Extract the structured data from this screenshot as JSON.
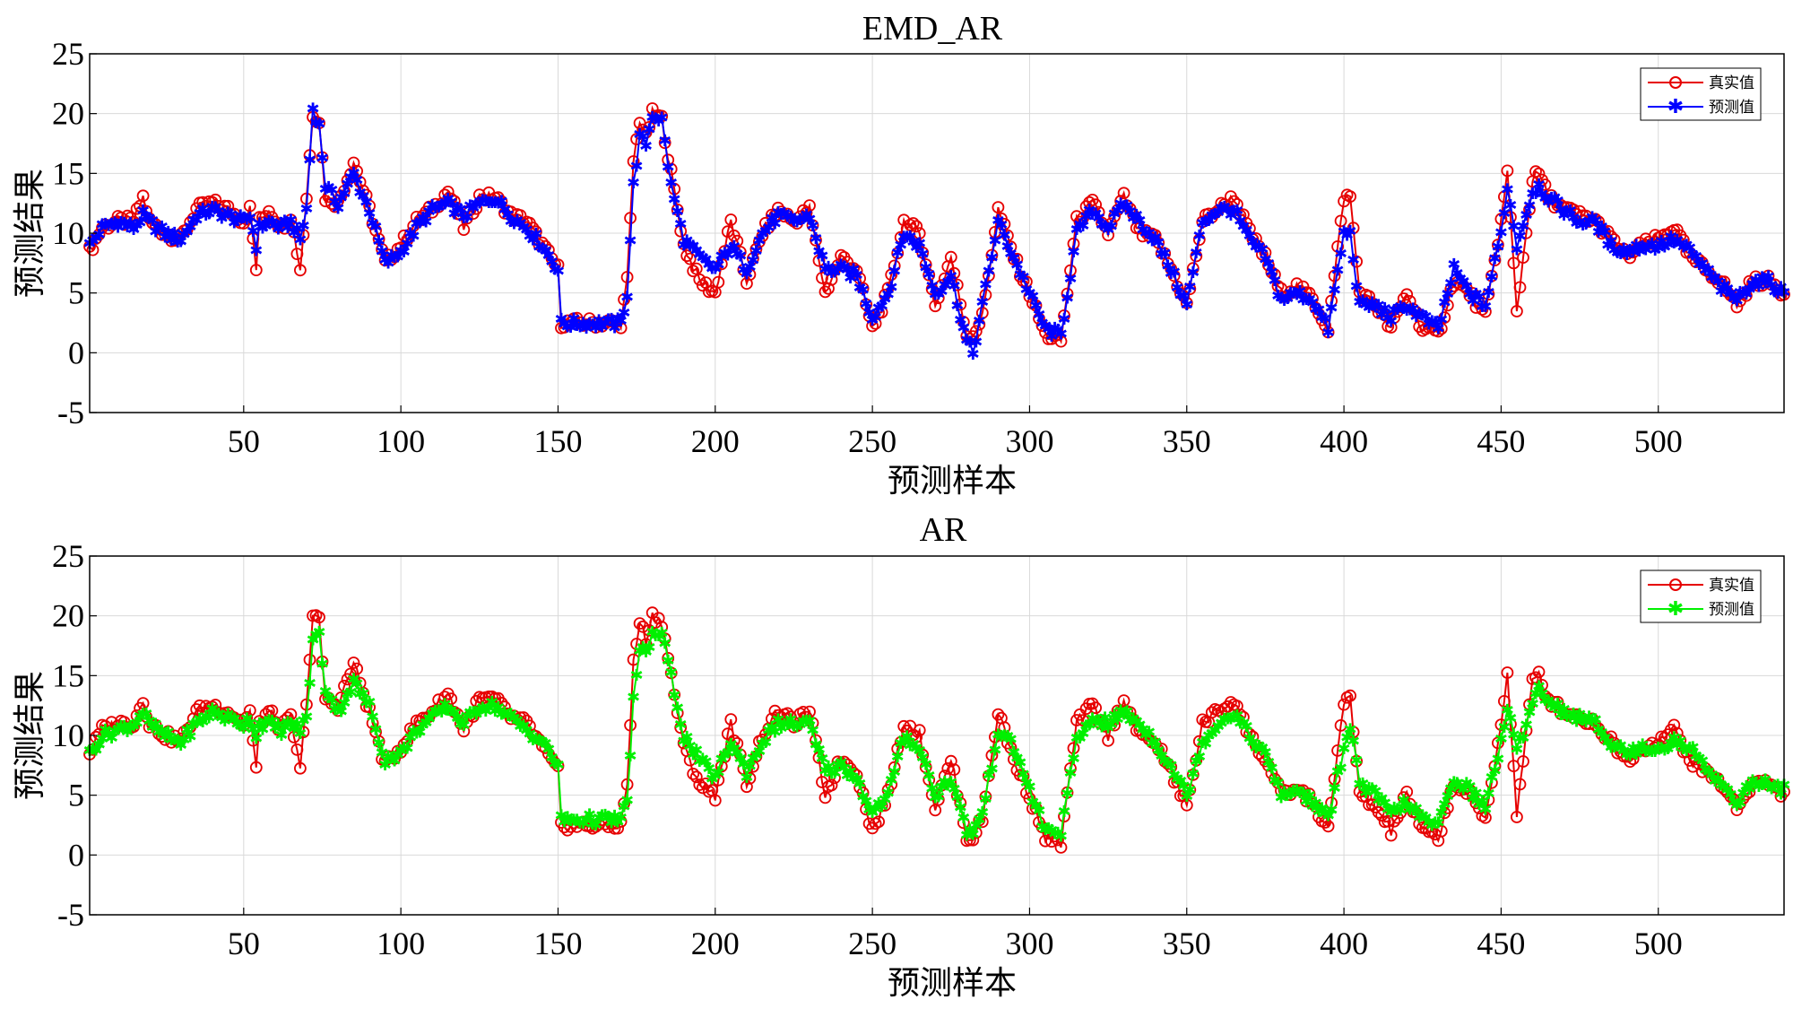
{
  "chart_data": [
    {
      "type": "line",
      "title": "EMD_AR",
      "xlabel": "预测样本",
      "ylabel": "预测结果",
      "xlim": [
        1,
        540
      ],
      "ylim": [
        -5,
        25
      ],
      "xticks": [
        50,
        100,
        150,
        200,
        250,
        300,
        350,
        400,
        450,
        500
      ],
      "yticks": [
        -5,
        0,
        5,
        10,
        15,
        20,
        25
      ],
      "grid": true,
      "legend": "top-right",
      "anchors": {
        "x": [
          1,
          5,
          10,
          15,
          18,
          20,
          25,
          30,
          35,
          40,
          45,
          50,
          52,
          54,
          55,
          58,
          62,
          65,
          68,
          70,
          72,
          74,
          76,
          80,
          85,
          90,
          95,
          100,
          105,
          110,
          115,
          120,
          125,
          130,
          135,
          140,
          145,
          150,
          151,
          155,
          160,
          165,
          170,
          172,
          174,
          176,
          178,
          180,
          183,
          186,
          190,
          195,
          200,
          205,
          210,
          215,
          220,
          225,
          230,
          235,
          240,
          245,
          250,
          255,
          260,
          265,
          270,
          275,
          280,
          282,
          285,
          290,
          295,
          300,
          305,
          310,
          315,
          320,
          325,
          330,
          335,
          340,
          345,
          350,
          355,
          360,
          365,
          370,
          375,
          380,
          385,
          390,
          395,
          400,
          402,
          405,
          410,
          415,
          420,
          425,
          430,
          435,
          440,
          445,
          450,
          452,
          455,
          460,
          462,
          465,
          470,
          475,
          480,
          485,
          490,
          495,
          500,
          505,
          510,
          515,
          520,
          525,
          530,
          535,
          540
        ],
        "actual": [
          8.5,
          10.5,
          11,
          11,
          13,
          11,
          10,
          9.5,
          12,
          12.5,
          12,
          11,
          12,
          7,
          11,
          12,
          10.5,
          11.5,
          7,
          13,
          20,
          19.5,
          13,
          12.5,
          16,
          12,
          7.5,
          9,
          11,
          12,
          13.5,
          10.5,
          13,
          13,
          11.5,
          11,
          9,
          7,
          2.5,
          2.5,
          2.5,
          2.5,
          2.5,
          6,
          16,
          19.5,
          18,
          20,
          19.5,
          15,
          9,
          6,
          5,
          11,
          6,
          10,
          12,
          11,
          12,
          5,
          8,
          7,
          2,
          5,
          11,
          10,
          4,
          8,
          1.5,
          1.5,
          3,
          12,
          8,
          5,
          1.5,
          1,
          11,
          12.5,
          10,
          13,
          10,
          9.5,
          7,
          4,
          11,
          12,
          13,
          10,
          8,
          5,
          5.5,
          4.5,
          2,
          13,
          13,
          5,
          4,
          2,
          5,
          2,
          1.5,
          6,
          5,
          3,
          11,
          15,
          3.5,
          14.5,
          15,
          13,
          12,
          11.5,
          11,
          9.5,
          8,
          9,
          9.5,
          10.5,
          8,
          7,
          6,
          4,
          6,
          6,
          5
        ],
        "predicted": [
          9,
          10.5,
          11,
          10.5,
          11.5,
          11,
          10,
          9.5,
          11.5,
          12,
          11.5,
          11,
          11.5,
          9,
          10.5,
          11,
          10.5,
          11,
          9.5,
          12,
          20.5,
          19,
          14,
          12.5,
          15,
          12,
          7.5,
          8.5,
          10.5,
          12,
          12.5,
          11.5,
          12.5,
          13,
          11.5,
          10.5,
          9,
          7,
          2.5,
          2.5,
          2.5,
          2.5,
          2.5,
          5,
          14,
          18,
          17.5,
          20,
          19.5,
          14,
          9.5,
          8,
          7,
          9,
          7,
          10,
          11.5,
          11,
          11.5,
          7,
          7,
          6.5,
          3,
          5,
          10,
          9,
          5,
          6.5,
          1,
          0,
          4,
          11,
          8,
          5,
          2,
          1.5,
          10,
          12,
          10.5,
          12.5,
          11,
          9.5,
          7,
          4,
          11,
          12,
          12,
          9.5,
          8,
          4.5,
          5,
          4.5,
          2,
          10,
          10,
          4,
          4,
          3,
          4,
          3,
          2,
          7,
          5,
          4,
          10,
          14,
          9,
          13.5,
          14,
          13,
          12,
          11,
          11,
          9,
          8.5,
          9,
          9,
          9.5,
          8.5,
          7,
          5.5,
          4.5,
          6,
          6,
          5
        ]
      },
      "series": [
        {
          "name": "真实值",
          "color": "#e60000",
          "marker": "circle"
        },
        {
          "name": "预测值",
          "color": "#0000ff",
          "marker": "star"
        }
      ]
    },
    {
      "type": "line",
      "title": "AR",
      "xlabel": "预测样本",
      "ylabel": "预测结果",
      "xlim": [
        1,
        540
      ],
      "ylim": [
        -5,
        25
      ],
      "xticks": [
        50,
        100,
        150,
        200,
        250,
        300,
        350,
        400,
        450,
        500
      ],
      "yticks": [
        -5,
        0,
        5,
        10,
        15,
        20,
        25
      ],
      "grid": true,
      "legend": "top-right",
      "anchors": {
        "x": [
          1,
          5,
          10,
          15,
          18,
          20,
          25,
          30,
          35,
          40,
          45,
          50,
          52,
          54,
          55,
          58,
          62,
          65,
          68,
          70,
          72,
          74,
          76,
          80,
          85,
          90,
          95,
          100,
          105,
          110,
          115,
          120,
          125,
          130,
          135,
          140,
          145,
          150,
          151,
          155,
          160,
          165,
          170,
          172,
          174,
          176,
          178,
          180,
          183,
          186,
          190,
          195,
          200,
          205,
          210,
          215,
          220,
          225,
          230,
          235,
          240,
          245,
          250,
          255,
          260,
          265,
          270,
          275,
          280,
          282,
          285,
          290,
          295,
          300,
          305,
          310,
          315,
          320,
          325,
          330,
          335,
          340,
          345,
          350,
          355,
          360,
          365,
          370,
          375,
          380,
          385,
          390,
          395,
          400,
          402,
          405,
          410,
          415,
          420,
          425,
          430,
          435,
          440,
          445,
          450,
          452,
          455,
          460,
          462,
          465,
          470,
          475,
          480,
          485,
          490,
          495,
          500,
          505,
          510,
          515,
          520,
          525,
          530,
          535,
          540
        ],
        "actual": [
          8.5,
          10.5,
          11,
          11,
          13,
          11,
          10,
          9.5,
          12,
          12.5,
          12,
          11,
          12,
          7,
          11,
          12,
          10.5,
          11.5,
          7,
          13,
          20,
          19.5,
          13,
          12.5,
          16,
          12,
          7.5,
          9,
          11,
          12,
          13.5,
          10.5,
          13,
          13,
          11.5,
          11,
          9,
          7,
          2.5,
          2.5,
          2.5,
          2.5,
          2.5,
          6,
          16,
          19.5,
          18,
          20,
          19.5,
          15,
          9,
          6,
          5,
          11,
          6,
          10,
          12,
          11,
          12,
          5,
          8,
          7,
          2,
          5,
          11,
          10,
          4,
          8,
          1.5,
          1.5,
          3,
          12,
          8,
          5,
          1.5,
          1,
          11,
          12.5,
          10,
          13,
          10,
          9.5,
          7,
          4,
          11,
          12,
          13,
          10,
          8,
          5,
          5.5,
          4.5,
          2,
          13,
          13,
          5,
          4,
          2,
          5,
          2,
          1.5,
          6,
          5,
          3,
          11,
          15,
          3.5,
          14.5,
          15,
          13,
          12,
          11.5,
          11,
          9.5,
          8,
          9,
          9.5,
          10.5,
          8,
          7,
          6,
          4,
          6,
          6,
          5
        ],
        "predicted": [
          8.5,
          10,
          10.5,
          11,
          12,
          11,
          10,
          9.5,
          11,
          12,
          11.5,
          11,
          11.5,
          10,
          11,
          11,
          10.5,
          11,
          10.5,
          11.5,
          18,
          18.5,
          14,
          12,
          14.5,
          12.5,
          8,
          8.5,
          10.5,
          11.5,
          12.5,
          11,
          12.5,
          12.5,
          11.5,
          10.5,
          9.5,
          7.5,
          3,
          3,
          3,
          3,
          3,
          4.5,
          13,
          17,
          17,
          18.5,
          18.5,
          15,
          10,
          8,
          6.5,
          9.5,
          7,
          9.5,
          11,
          11,
          11,
          7,
          7.5,
          6.5,
          3.5,
          5,
          10,
          9,
          5,
          6.5,
          2,
          2,
          3.5,
          10.5,
          9,
          5.5,
          2,
          2,
          9.5,
          11.5,
          11,
          12,
          11,
          9.5,
          7.5,
          5,
          9.5,
          11,
          12,
          10,
          8.5,
          5,
          5.5,
          4.5,
          3,
          9,
          11,
          6,
          5,
          3.5,
          4.5,
          3,
          2.5,
          6.5,
          5.5,
          4,
          9.5,
          12.5,
          8.5,
          13,
          14,
          13,
          12,
          11.5,
          11,
          9.5,
          8.5,
          9,
          9,
          9.5,
          9,
          7.5,
          6,
          4.5,
          6,
          6,
          5.5
        ]
      },
      "series": [
        {
          "name": "真实值",
          "color": "#e60000",
          "marker": "circle"
        },
        {
          "name": "预测值",
          "color": "#00f000",
          "marker": "star"
        }
      ]
    }
  ]
}
